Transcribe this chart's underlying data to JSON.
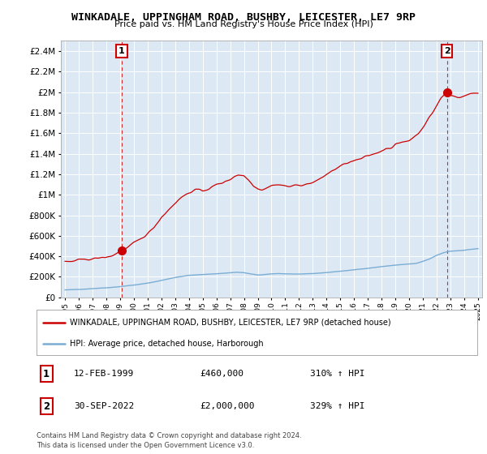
{
  "title": "WINKADALE, UPPINGHAM ROAD, BUSHBY, LEICESTER, LE7 9RP",
  "subtitle": "Price paid vs. HM Land Registry's House Price Index (HPI)",
  "legend_label_red": "WINKADALE, UPPINGHAM ROAD, BUSHBY, LEICESTER, LE7 9RP (detached house)",
  "legend_label_blue": "HPI: Average price, detached house, Harborough",
  "annotation1_date": "12-FEB-1999",
  "annotation1_price": "£460,000",
  "annotation1_hpi": "310% ↑ HPI",
  "annotation2_date": "30-SEP-2022",
  "annotation2_price": "£2,000,000",
  "annotation2_hpi": "329% ↑ HPI",
  "footer": "Contains HM Land Registry data © Crown copyright and database right 2024.\nThis data is licensed under the Open Government Licence v3.0.",
  "ylim": [
    0,
    2500000
  ],
  "yticks": [
    0,
    200000,
    400000,
    600000,
    800000,
    1000000,
    1200000,
    1400000,
    1600000,
    1800000,
    2000000,
    2200000,
    2400000
  ],
  "background_color": "#ffffff",
  "plot_bg_color": "#dce9f5",
  "grid_color": "#ffffff",
  "red_color": "#cc0000",
  "blue_color": "#7aadd4",
  "vline_color": "#cc0000",
  "point1_x": 1999.12,
  "point1_y": 460000,
  "point2_x": 2022.75,
  "point2_y": 2000000,
  "xlim_left": 1994.7,
  "xlim_right": 2025.3
}
